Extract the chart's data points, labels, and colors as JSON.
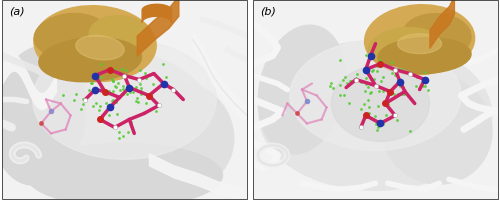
{
  "figure_width": 5.0,
  "figure_height": 2.01,
  "dpi": 100,
  "panel_a_label": "(a)",
  "panel_b_label": "(b)",
  "label_fontsize": 8,
  "background_color": "#ffffff",
  "border_color": "#333333",
  "border_linewidth": 0.6,
  "panel_bg": "#f0f0f0",
  "gold_color": "#c8a855",
  "gold_dark": "#a08030",
  "surface_light": "#e8e8e8",
  "surface_mid": "#d0d0d0",
  "surface_dark": "#b8b8b8",
  "ribbon_white": "#f8f8f8",
  "ribbon_orange": "#c87820",
  "molecule_pink": "#cc2266",
  "molecule_pink2": "#dd55aa",
  "molecule_blue": "#2233aa",
  "molecule_red": "#cc2222",
  "molecule_white": "#ffffff",
  "green_dot": "#55cc33"
}
